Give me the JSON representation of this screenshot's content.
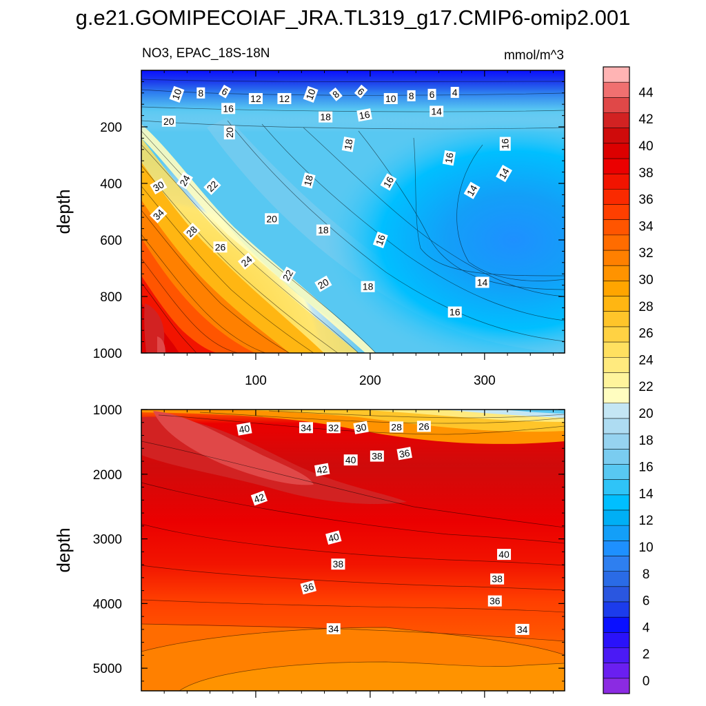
{
  "chart_data": {
    "type": "contour",
    "title": "g.e21.GOMIPECOIAF_JRA.TL319_g17.CMIP6-omip2.001",
    "variable_label": "NO3, EPAC_18S-18N",
    "units_label": "mmol/m^3",
    "colorbar": {
      "levels": [
        0,
        2,
        4,
        6,
        8,
        10,
        12,
        14,
        16,
        18,
        20,
        22,
        24,
        26,
        28,
        30,
        32,
        34,
        36,
        38,
        40,
        42,
        44
      ],
      "labels": [
        "0",
        "2",
        "4",
        "6",
        "8",
        "10",
        "12",
        "14",
        "16",
        "18",
        "20",
        "22",
        "24",
        "26",
        "28",
        "30",
        "32",
        "34",
        "36",
        "38",
        "40",
        "42",
        "44"
      ],
      "colors": [
        "#8B2BE2",
        "#6A1FF0",
        "#4B1AF5",
        "#2A12FA",
        "#0A10FF",
        "#1C3CEC",
        "#2A56E0",
        "#2A6BE6",
        "#2E7FF0",
        "#1E90FF",
        "#139FF8",
        "#00AFF5",
        "#00BFFF",
        "#2FC4F7",
        "#58C8F2",
        "#7ACCF0",
        "#96D3F0",
        "#AEDCF2",
        "#C4E6F4",
        "#FFFDC0",
        "#FFF49C",
        "#FFEA7E",
        "#FFE060",
        "#FFD243",
        "#FFC52A",
        "#FFB612",
        "#FFA500",
        "#FF9300",
        "#FF8000",
        "#FF6C00",
        "#FF5500",
        "#FF3F00",
        "#FA2A00",
        "#F21400",
        "#EB0000",
        "#DC0000",
        "#CF0B0B",
        "#D22222",
        "#E04848",
        "#F07070",
        "#FFB4B4"
      ]
    },
    "panels": [
      {
        "name": "upper",
        "xlabel": "",
        "ylabel": "depth",
        "xlim": [
          0,
          370
        ],
        "ylim": [
          1000,
          0
        ],
        "xticks": [
          100,
          200,
          300
        ],
        "xtick_labels": [
          "100",
          "200",
          "300"
        ],
        "yticks": [
          200,
          400,
          600,
          800,
          1000
        ],
        "ytick_labels": [
          "200",
          "400",
          "600",
          "800",
          "1000"
        ],
        "contour_labels": [
          {
            "text": "10",
            "x": 31,
            "y": 85,
            "rotate": -70
          },
          {
            "text": "8",
            "x": 52,
            "y": 80,
            "rotate": 0
          },
          {
            "text": "6",
            "x": 73,
            "y": 75,
            "rotate": 30
          },
          {
            "text": "12",
            "x": 100,
            "y": 100,
            "rotate": 0
          },
          {
            "text": "12",
            "x": 125,
            "y": 100,
            "rotate": 0
          },
          {
            "text": "10",
            "x": 148,
            "y": 85,
            "rotate": -70
          },
          {
            "text": "8",
            "x": 170,
            "y": 85,
            "rotate": -40
          },
          {
            "text": "6",
            "x": 192,
            "y": 75,
            "rotate": 40
          },
          {
            "text": "10",
            "x": 218,
            "y": 100,
            "rotate": 0
          },
          {
            "text": "8",
            "x": 236,
            "y": 90,
            "rotate": 0
          },
          {
            "text": "6",
            "x": 254,
            "y": 85,
            "rotate": 0
          },
          {
            "text": "4",
            "x": 274,
            "y": 78,
            "rotate": 0
          },
          {
            "text": "16",
            "x": 76,
            "y": 135,
            "rotate": 0
          },
          {
            "text": "18",
            "x": 161,
            "y": 165,
            "rotate": 0
          },
          {
            "text": "16",
            "x": 195,
            "y": 158,
            "rotate": -10
          },
          {
            "text": "14",
            "x": 258,
            "y": 145,
            "rotate": 0
          },
          {
            "text": "20",
            "x": 24,
            "y": 180,
            "rotate": 0
          },
          {
            "text": "20",
            "x": 77,
            "y": 220,
            "rotate": -90
          },
          {
            "text": "18",
            "x": 181,
            "y": 262,
            "rotate": -80
          },
          {
            "text": "18",
            "x": 146,
            "y": 390,
            "rotate": -75
          },
          {
            "text": "16",
            "x": 216,
            "y": 395,
            "rotate": -60
          },
          {
            "text": "16",
            "x": 269,
            "y": 310,
            "rotate": -80
          },
          {
            "text": "16",
            "x": 318,
            "y": 260,
            "rotate": -90
          },
          {
            "text": "14",
            "x": 317,
            "y": 365,
            "rotate": -60
          },
          {
            "text": "14",
            "x": 289,
            "y": 425,
            "rotate": -60
          },
          {
            "text": "30",
            "x": 15,
            "y": 410,
            "rotate": -30
          },
          {
            "text": "24",
            "x": 38,
            "y": 390,
            "rotate": -60
          },
          {
            "text": "22",
            "x": 62,
            "y": 410,
            "rotate": -45
          },
          {
            "text": "34",
            "x": 15,
            "y": 510,
            "rotate": -45
          },
          {
            "text": "28",
            "x": 44,
            "y": 570,
            "rotate": -45
          },
          {
            "text": "20",
            "x": 114,
            "y": 525,
            "rotate": 0
          },
          {
            "text": "18",
            "x": 159,
            "y": 565,
            "rotate": 0
          },
          {
            "text": "16",
            "x": 209,
            "y": 600,
            "rotate": -70
          },
          {
            "text": "26",
            "x": 69,
            "y": 625,
            "rotate": 0
          },
          {
            "text": "24",
            "x": 92,
            "y": 675,
            "rotate": -40
          },
          {
            "text": "22",
            "x": 128,
            "y": 725,
            "rotate": -60
          },
          {
            "text": "20",
            "x": 159,
            "y": 755,
            "rotate": -30
          },
          {
            "text": "18",
            "x": 198,
            "y": 765,
            "rotate": 0
          },
          {
            "text": "14",
            "x": 298,
            "y": 750,
            "rotate": 0
          },
          {
            "text": "16",
            "x": 274,
            "y": 855,
            "rotate": 0
          }
        ]
      },
      {
        "name": "lower",
        "xlabel": "",
        "ylabel": "depth",
        "xlim": [
          0,
          370
        ],
        "ylim": [
          5350,
          1000
        ],
        "xticks": [
          100,
          200,
          300
        ],
        "xtick_labels": [
          "",
          "",
          ""
        ],
        "yticks": [
          1000,
          2000,
          3000,
          4000,
          5000
        ],
        "ytick_labels": [
          "1000",
          "2000",
          "3000",
          "4000",
          "5000"
        ],
        "contour_labels": [
          {
            "text": "40",
            "x": 90,
            "y": 1300,
            "rotate": -10
          },
          {
            "text": "34",
            "x": 144,
            "y": 1280,
            "rotate": 0
          },
          {
            "text": "32",
            "x": 168,
            "y": 1280,
            "rotate": 0
          },
          {
            "text": "30",
            "x": 192,
            "y": 1280,
            "rotate": -10
          },
          {
            "text": "28",
            "x": 223,
            "y": 1270,
            "rotate": 0
          },
          {
            "text": "26",
            "x": 247,
            "y": 1260,
            "rotate": 0
          },
          {
            "text": "40",
            "x": 183,
            "y": 1780,
            "rotate": 0
          },
          {
            "text": "38",
            "x": 206,
            "y": 1720,
            "rotate": 0
          },
          {
            "text": "36",
            "x": 230,
            "y": 1680,
            "rotate": -10
          },
          {
            "text": "42",
            "x": 158,
            "y": 1930,
            "rotate": -10
          },
          {
            "text": "42",
            "x": 103,
            "y": 2370,
            "rotate": -20
          },
          {
            "text": "40",
            "x": 168,
            "y": 2980,
            "rotate": -15
          },
          {
            "text": "38",
            "x": 172,
            "y": 3390,
            "rotate": 0
          },
          {
            "text": "36",
            "x": 146,
            "y": 3750,
            "rotate": -15
          },
          {
            "text": "40",
            "x": 317,
            "y": 3240,
            "rotate": 0
          },
          {
            "text": "38",
            "x": 311,
            "y": 3620,
            "rotate": 0
          },
          {
            "text": "36",
            "x": 309,
            "y": 3960,
            "rotate": 0
          },
          {
            "text": "34",
            "x": 168,
            "y": 4390,
            "rotate": 0
          },
          {
            "text": "34",
            "x": 333,
            "y": 4400,
            "rotate": 0
          }
        ]
      }
    ]
  }
}
